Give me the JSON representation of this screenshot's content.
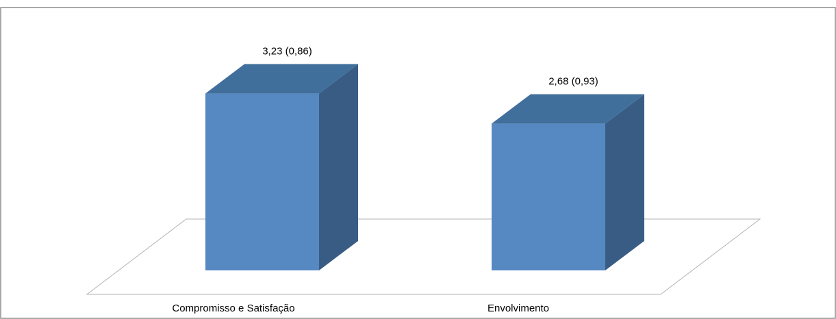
{
  "chart_data": {
    "type": "bar",
    "style": "3d-column",
    "title": "",
    "xlabel": "",
    "ylabel": "",
    "categories": [
      "Compromisso e Satisfação",
      "Envolvimento"
    ],
    "values": [
      3.23,
      2.68
    ],
    "data_labels": [
      "3,23 (0,86)",
      "2,68 (0,93)"
    ],
    "ylim": [
      0,
      3.5
    ],
    "grid": false,
    "legend": "none",
    "colors": {
      "front": "#5689C2",
      "top": "#416F9C",
      "side": "#395C84",
      "floor_stroke": "#B3B3B3",
      "frame_stroke": "#8C8C8C"
    }
  }
}
